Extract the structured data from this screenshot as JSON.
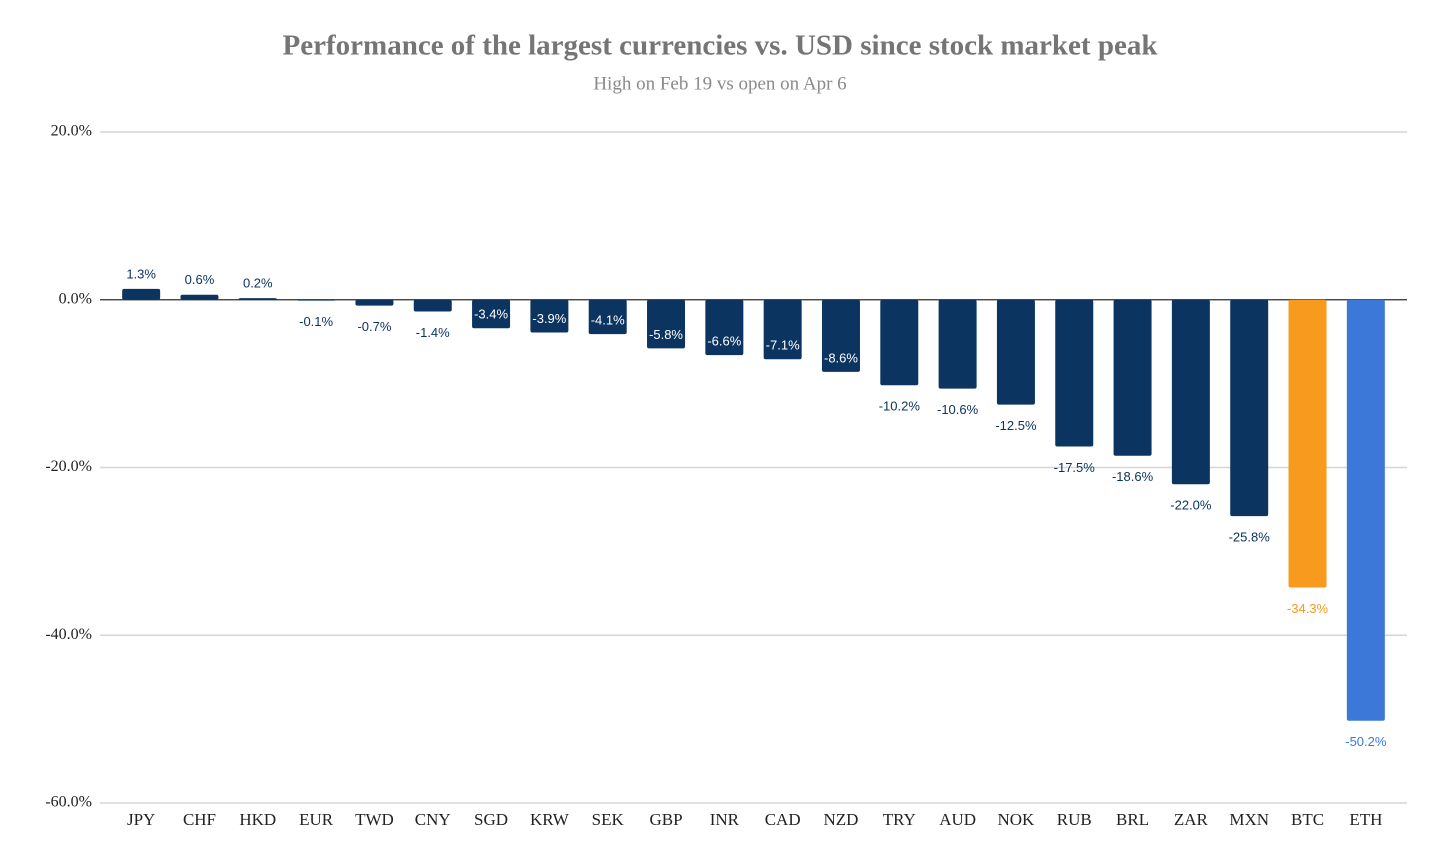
{
  "chart_data": {
    "type": "bar",
    "title": "Performance of the largest currencies vs. USD since stock market peak",
    "subtitle": "High on Feb 19 vs open on Apr 6",
    "categories": [
      "JPY",
      "CHF",
      "HKD",
      "EUR",
      "TWD",
      "CNY",
      "SGD",
      "KRW",
      "SEK",
      "GBP",
      "INR",
      "CAD",
      "NZD",
      "TRY",
      "AUD",
      "NOK",
      "RUB",
      "BRL",
      "ZAR",
      "MXN",
      "BTC",
      "ETH"
    ],
    "values": [
      1.3,
      0.6,
      0.2,
      -0.1,
      -0.7,
      -1.4,
      -3.4,
      -3.9,
      -4.1,
      -5.8,
      -6.6,
      -7.1,
      -8.6,
      -10.2,
      -10.6,
      -12.5,
      -17.5,
      -18.6,
      -22.0,
      -25.8,
      -34.3,
      -50.2
    ],
    "value_labels": [
      "1.3%",
      "0.6%",
      "0.2%",
      "-0.1%",
      "-0.7%",
      "-1.4%",
      "-3.4%",
      "-3.9%",
      "-4.1%",
      "-5.8%",
      "-6.6%",
      "-7.1%",
      "-8.6%",
      "-10.2%",
      "-10.6%",
      "-12.5%",
      "-17.5%",
      "-18.6%",
      "-22.0%",
      "-25.8%",
      "-34.3%",
      "-50.2%"
    ],
    "colors": [
      "#0c3461",
      "#0c3461",
      "#0c3461",
      "#0c3461",
      "#0c3461",
      "#0c3461",
      "#0c3461",
      "#0c3461",
      "#0c3461",
      "#0c3461",
      "#0c3461",
      "#0c3461",
      "#0c3461",
      "#0c3461",
      "#0c3461",
      "#0c3461",
      "#0c3461",
      "#0c3461",
      "#0c3461",
      "#0c3461",
      "#f79a1e",
      "#3b78d8"
    ],
    "ylim": [
      -60,
      20
    ],
    "yticks": [
      {
        "value": -60,
        "label": "-60.0%"
      },
      {
        "value": -40,
        "label": "-40.0%"
      },
      {
        "value": -20,
        "label": "-20.0%"
      },
      {
        "value": 0,
        "label": "0.0%"
      },
      {
        "value": 20,
        "label": "20.0%"
      }
    ],
    "grid": true
  }
}
